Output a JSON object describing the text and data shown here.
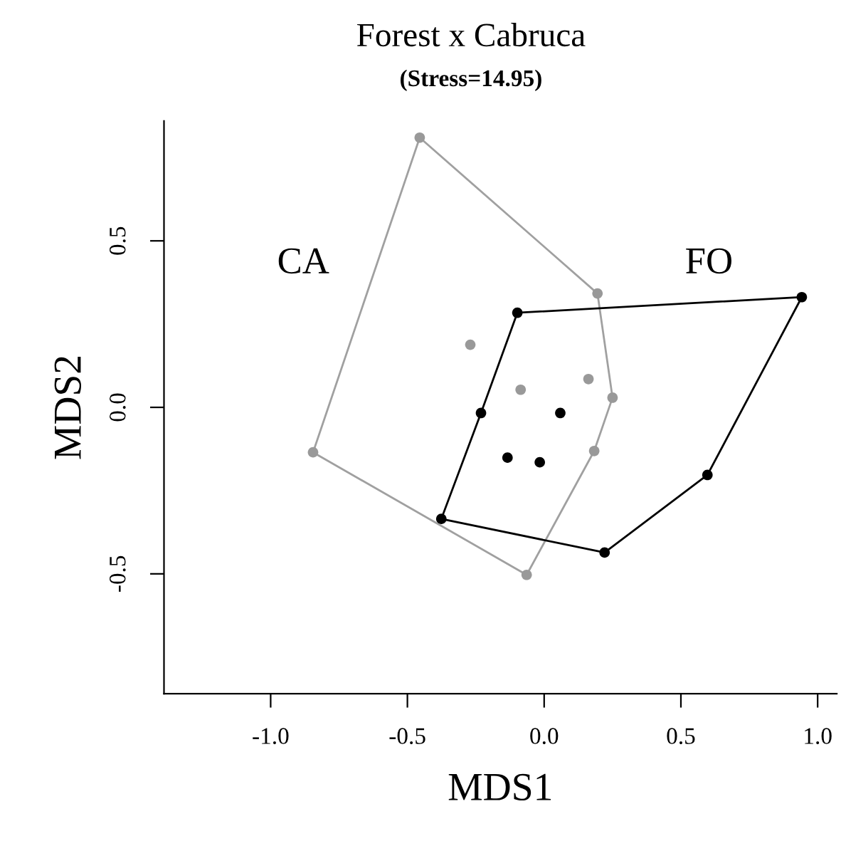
{
  "chart_data": {
    "type": "line",
    "title": "Forest x Cabruca",
    "subtitle": "(Stress=14.95)",
    "xlabel": "MDS1",
    "ylabel": "MDS2",
    "xlim": [
      -1.39,
      1.07
    ],
    "ylim": [
      -0.86,
      0.86
    ],
    "xticks": [
      {
        "value": -1.0,
        "label": "-1.0"
      },
      {
        "value": -0.5,
        "label": "-0.5"
      },
      {
        "value": 0.0,
        "label": "0.0"
      },
      {
        "value": 0.5,
        "label": "0.5"
      },
      {
        "value": 1.0,
        "label": "1.0"
      }
    ],
    "yticks": [
      {
        "value": -0.5,
        "label": "-0.5"
      },
      {
        "value": 0.0,
        "label": "0.0"
      },
      {
        "value": 0.5,
        "label": "0.5"
      }
    ],
    "grid": false,
    "legend": false,
    "annotations": [
      "CA",
      "FO"
    ],
    "series": [
      {
        "color": "#a0a0a0",
        "marker": "none",
        "line_style": "solid",
        "x": [
          -0.845,
          -0.455,
          0.195,
          0.25
        ],
        "values": [
          -0.135,
          0.81,
          0.342,
          0.029
        ]
      },
      {
        "color": "#a0a0a0",
        "marker": "none",
        "line_style": "solid",
        "x": [
          -0.845,
          -0.064,
          0.183,
          0.25
        ],
        "values": [
          -0.135,
          -0.503,
          -0.131,
          0.029
        ]
      },
      {
        "color": "#000000",
        "marker": "none",
        "line_style": "solid",
        "x": [
          -0.376,
          -0.231,
          -0.098,
          0.942
        ],
        "values": [
          -0.335,
          -0.017,
          0.284,
          0.331
        ]
      },
      {
        "color": "#000000",
        "marker": "none",
        "line_style": "solid",
        "x": [
          -0.376,
          0.221,
          0.597,
          0.942
        ],
        "values": [
          -0.335,
          -0.436,
          -0.203,
          0.331
        ]
      },
      {
        "type": "scatter",
        "color": "#999999",
        "marker": "circle",
        "x": [
          -0.455,
          0.195,
          0.25,
          0.183,
          -0.064,
          -0.845,
          -0.27,
          -0.086,
          0.162
        ],
        "values": [
          0.81,
          0.342,
          0.029,
          -0.131,
          -0.503,
          -0.135,
          0.188,
          0.053,
          0.085
        ]
      },
      {
        "type": "scatter",
        "color": "#000000",
        "marker": "circle",
        "x": [
          -0.098,
          0.942,
          0.597,
          0.221,
          -0.376,
          -0.231,
          0.059,
          -0.134,
          -0.016
        ],
        "values": [
          0.284,
          0.331,
          -0.203,
          -0.436,
          -0.335,
          -0.017,
          -0.017,
          -0.151,
          -0.165
        ]
      }
    ]
  }
}
